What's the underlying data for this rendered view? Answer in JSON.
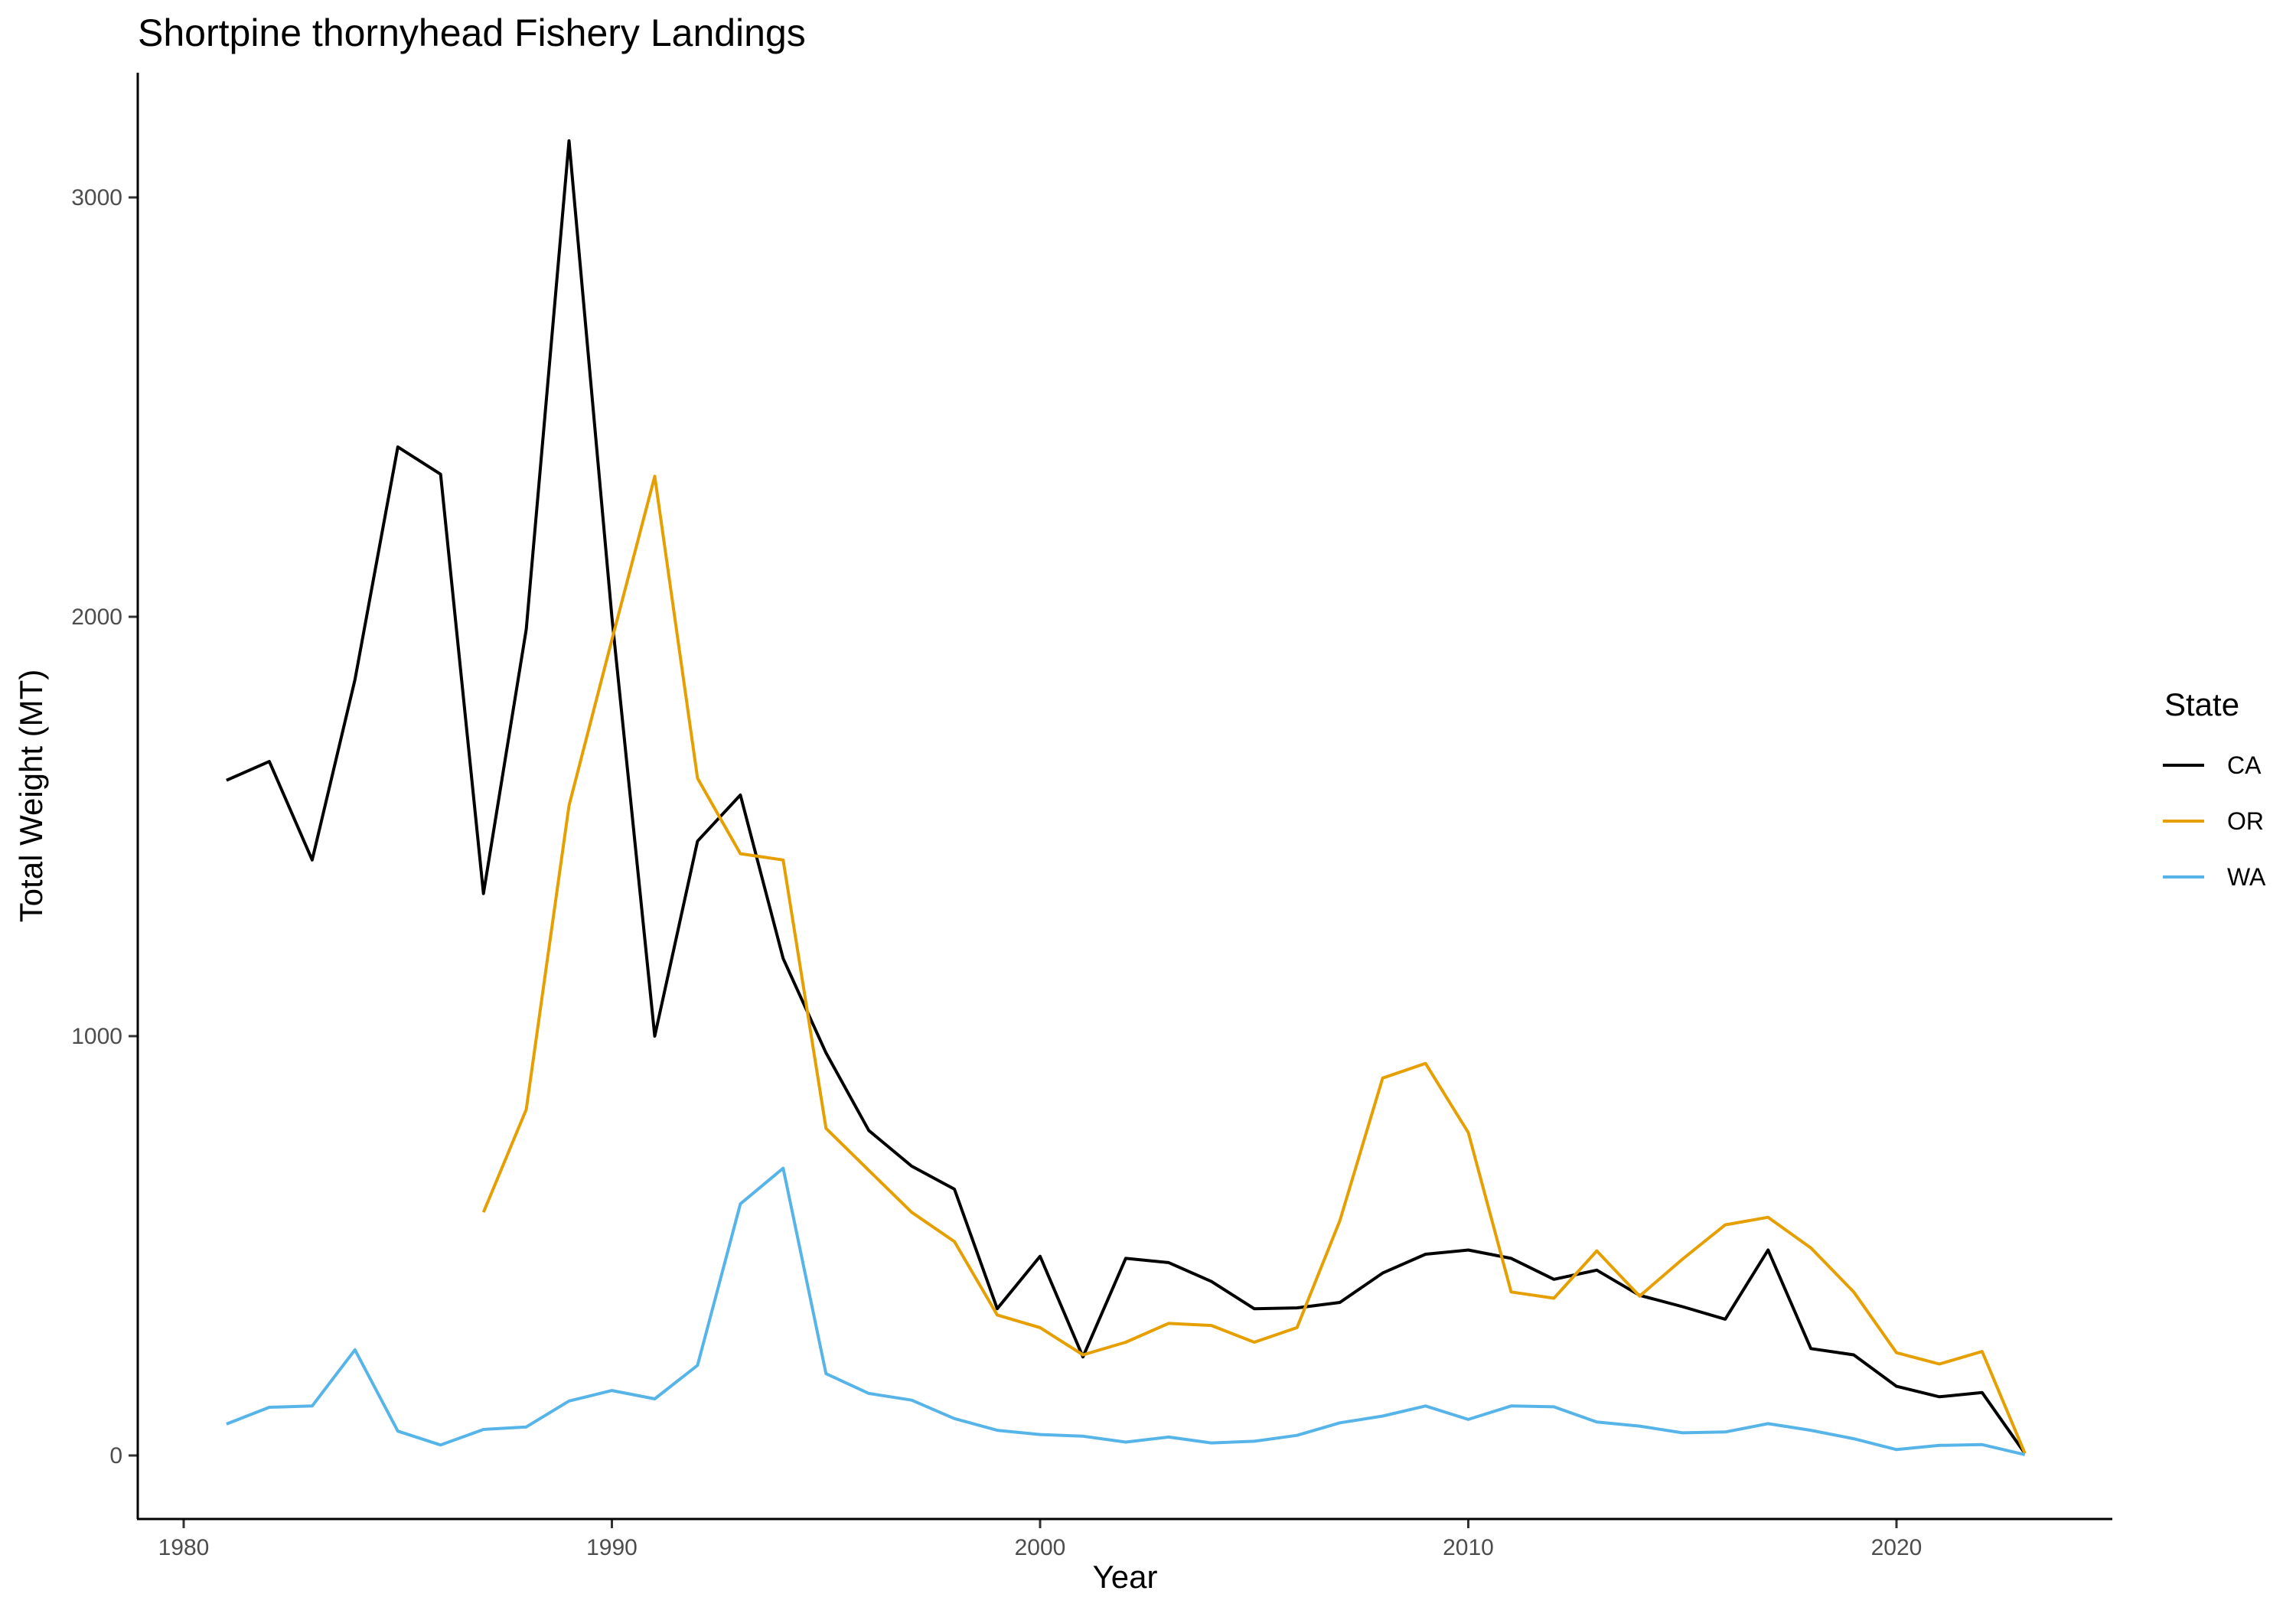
{
  "chart_data": {
    "type": "line",
    "title": "Shortpine thornyhead Fishery Landings",
    "xlabel": "Year",
    "ylabel": "Total Weight (MT)",
    "xlim": [
      1979,
      2025
    ],
    "ylim": [
      -150,
      3300
    ],
    "xticks": [
      1980,
      1990,
      2000,
      2010,
      2020
    ],
    "yticks": [
      0,
      1000,
      2000,
      3000
    ],
    "grid": false,
    "legend": {
      "title": "State",
      "position": "right"
    },
    "series": [
      {
        "name": "CA",
        "color": "#000000",
        "points": [
          [
            1981,
            1610
          ],
          [
            1982,
            1655
          ],
          [
            1983,
            1420
          ],
          [
            1984,
            1850
          ],
          [
            1985,
            2405
          ],
          [
            1986,
            2340
          ],
          [
            1987,
            1340
          ],
          [
            1988,
            1970
          ],
          [
            1989,
            3135
          ],
          [
            1990,
            2000
          ],
          [
            1991,
            1000
          ],
          [
            1992,
            1465
          ],
          [
            1993,
            1575
          ],
          [
            1994,
            1185
          ],
          [
            1995,
            960
          ],
          [
            1996,
            775
          ],
          [
            1997,
            690
          ],
          [
            1998,
            635
          ],
          [
            1999,
            350
          ],
          [
            2000,
            475
          ],
          [
            2001,
            235
          ],
          [
            2002,
            470
          ],
          [
            2003,
            460
          ],
          [
            2004,
            415
          ],
          [
            2005,
            350
          ],
          [
            2006,
            352
          ],
          [
            2007,
            365
          ],
          [
            2008,
            435
          ],
          [
            2009,
            480
          ],
          [
            2010,
            490
          ],
          [
            2011,
            470
          ],
          [
            2012,
            420
          ],
          [
            2013,
            442
          ],
          [
            2014,
            382
          ],
          [
            2015,
            355
          ],
          [
            2016,
            325
          ],
          [
            2017,
            490
          ],
          [
            2018,
            255
          ],
          [
            2019,
            240
          ],
          [
            2020,
            165
          ],
          [
            2021,
            140
          ],
          [
            2022,
            150
          ],
          [
            2023,
            5
          ]
        ]
      },
      {
        "name": "OR",
        "color": "#E69F00",
        "points": [
          [
            1987,
            580
          ],
          [
            1988,
            825
          ],
          [
            1989,
            1550
          ],
          [
            1990,
            1945
          ],
          [
            1991,
            2335
          ],
          [
            1992,
            1615
          ],
          [
            1993,
            1435
          ],
          [
            1994,
            1420
          ],
          [
            1995,
            780
          ],
          [
            1996,
            680
          ],
          [
            1997,
            580
          ],
          [
            1998,
            510
          ],
          [
            1999,
            335
          ],
          [
            2000,
            305
          ],
          [
            2001,
            240
          ],
          [
            2002,
            270
          ],
          [
            2003,
            315
          ],
          [
            2004,
            310
          ],
          [
            2005,
            270
          ],
          [
            2006,
            305
          ],
          [
            2007,
            560
          ],
          [
            2008,
            900
          ],
          [
            2009,
            935
          ],
          [
            2010,
            770
          ],
          [
            2011,
            390
          ],
          [
            2012,
            375
          ],
          [
            2013,
            488
          ],
          [
            2014,
            380
          ],
          [
            2015,
            468
          ],
          [
            2016,
            550
          ],
          [
            2017,
            568
          ],
          [
            2018,
            495
          ],
          [
            2019,
            390
          ],
          [
            2020,
            245
          ],
          [
            2021,
            218
          ],
          [
            2022,
            248
          ],
          [
            2023,
            5
          ]
        ]
      },
      {
        "name": "WA",
        "color": "#56B4E9",
        "points": [
          [
            1981,
            75
          ],
          [
            1982,
            115
          ],
          [
            1983,
            118
          ],
          [
            1984,
            252
          ],
          [
            1985,
            58
          ],
          [
            1986,
            25
          ],
          [
            1987,
            62
          ],
          [
            1988,
            68
          ],
          [
            1989,
            130
          ],
          [
            1990,
            155
          ],
          [
            1991,
            135
          ],
          [
            1992,
            215
          ],
          [
            1993,
            600
          ],
          [
            1994,
            685
          ],
          [
            1995,
            195
          ],
          [
            1996,
            148
          ],
          [
            1997,
            132
          ],
          [
            1998,
            88
          ],
          [
            1999,
            60
          ],
          [
            2000,
            50
          ],
          [
            2001,
            46
          ],
          [
            2002,
            32
          ],
          [
            2003,
            44
          ],
          [
            2004,
            30
          ],
          [
            2005,
            34
          ],
          [
            2006,
            48
          ],
          [
            2007,
            78
          ],
          [
            2008,
            94
          ],
          [
            2009,
            118
          ],
          [
            2010,
            86
          ],
          [
            2011,
            118
          ],
          [
            2012,
            116
          ],
          [
            2013,
            80
          ],
          [
            2014,
            70
          ],
          [
            2015,
            54
          ],
          [
            2016,
            56
          ],
          [
            2017,
            76
          ],
          [
            2018,
            60
          ],
          [
            2019,
            40
          ],
          [
            2020,
            14
          ],
          [
            2021,
            24
          ],
          [
            2022,
            26
          ],
          [
            2023,
            2
          ]
        ]
      }
    ]
  }
}
